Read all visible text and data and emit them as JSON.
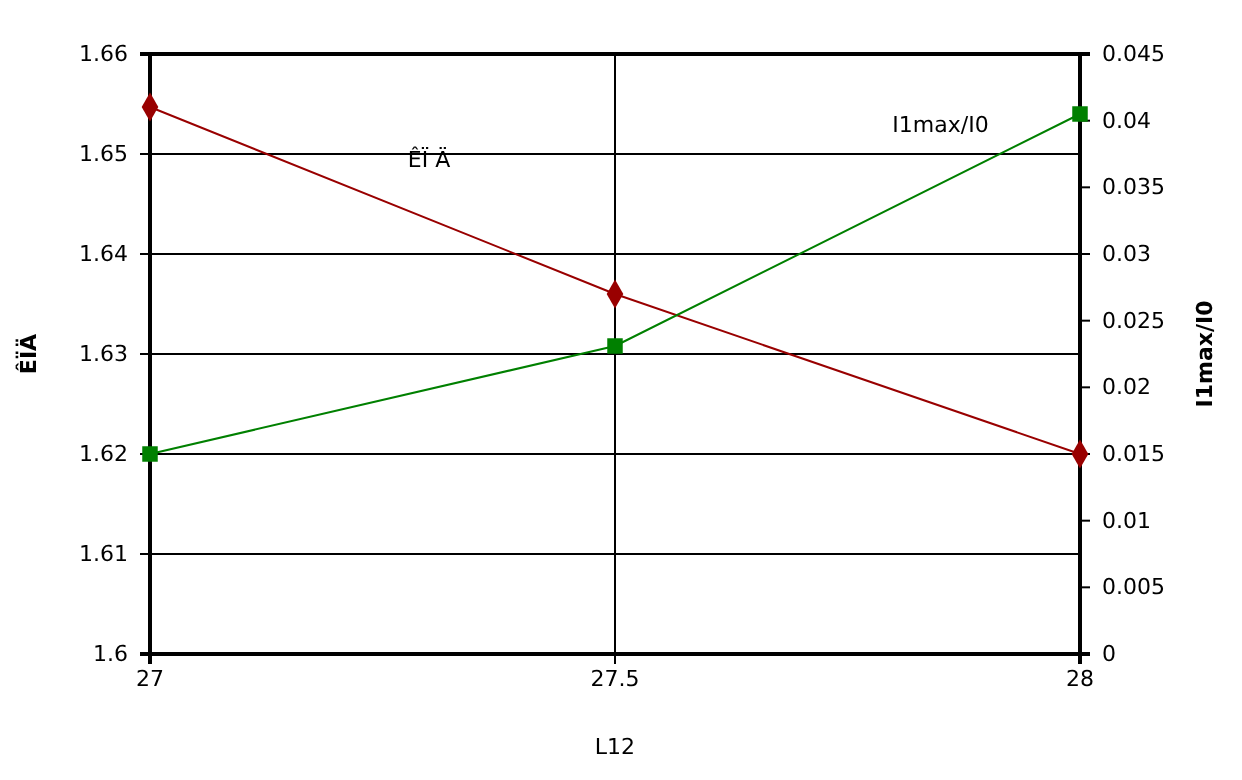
{
  "chart_data": {
    "type": "line",
    "x": [
      27,
      27.5,
      28
    ],
    "xlabel": "L12",
    "ylabel": "ÊÏÄ",
    "y2label": "I1max/I0",
    "xlim": [
      27,
      28
    ],
    "xticks": [
      27,
      27.5,
      28
    ],
    "ylim": [
      1.6,
      1.66
    ],
    "yticks": [
      1.6,
      1.61,
      1.62,
      1.63,
      1.64,
      1.65,
      1.66
    ],
    "y2lim": [
      0,
      0.045
    ],
    "y2ticks": [
      0,
      0.005,
      0.01,
      0.015,
      0.02,
      0.025,
      0.03,
      0.035,
      0.04,
      0.045
    ],
    "grid": true,
    "legend": false,
    "series": [
      {
        "name": "ÊÏ Ä",
        "color": "#990000",
        "marker": "diamond",
        "values": [
          1.6547,
          1.636,
          1.62
        ]
      },
      {
        "name": "I1max/I0",
        "color": "#008000",
        "marker": "square",
        "axis": "y2",
        "values": [
          0.015,
          0.0231,
          0.0405
        ]
      }
    ]
  }
}
